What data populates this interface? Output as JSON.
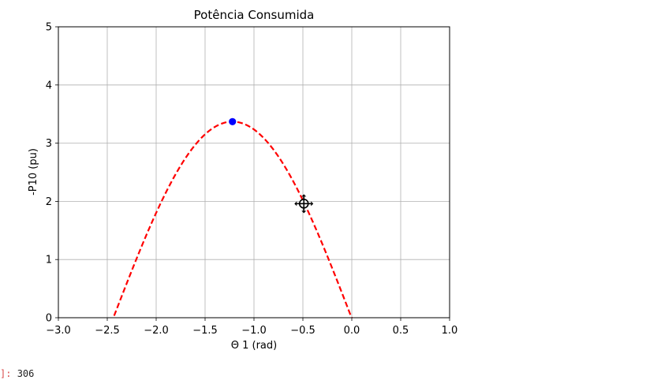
{
  "chart_data": {
    "type": "line",
    "title": "Potência Consumida",
    "xlabel": "Θ 1 (rad)",
    "ylabel": "-P10 (pu)",
    "xlim": [
      -3.0,
      1.0
    ],
    "ylim": [
      0,
      5
    ],
    "x_ticks": [
      -3.0,
      -2.5,
      -2.0,
      -1.5,
      -1.0,
      -0.5,
      0.0,
      0.5,
      1.0
    ],
    "x_tick_labels": [
      "−3.0",
      "−2.5",
      "−2.0",
      "−1.5",
      "−1.0",
      "−0.5",
      "0.0",
      "0.5",
      "1.0"
    ],
    "y_ticks": [
      0,
      1,
      2,
      3,
      4,
      5
    ],
    "y_tick_labels": [
      "0",
      "1",
      "2",
      "3",
      "4",
      "5"
    ],
    "grid": true,
    "series": [
      {
        "style": "dashed",
        "color": "#ff0000",
        "curve": {
          "amplitude": 3.37,
          "center": -1.22,
          "frequency": 1.29
        },
        "x_range": [
          -2.43,
          0.0
        ]
      }
    ],
    "points": [
      {
        "x": -1.22,
        "y": 3.37,
        "color": "#0000ff"
      }
    ],
    "cursor_marker": {
      "x": -0.49,
      "y": 1.96,
      "color": "#000000",
      "icon": "move-cursor-icon"
    }
  },
  "output": {
    "prompt": "]:",
    "value": "306"
  }
}
